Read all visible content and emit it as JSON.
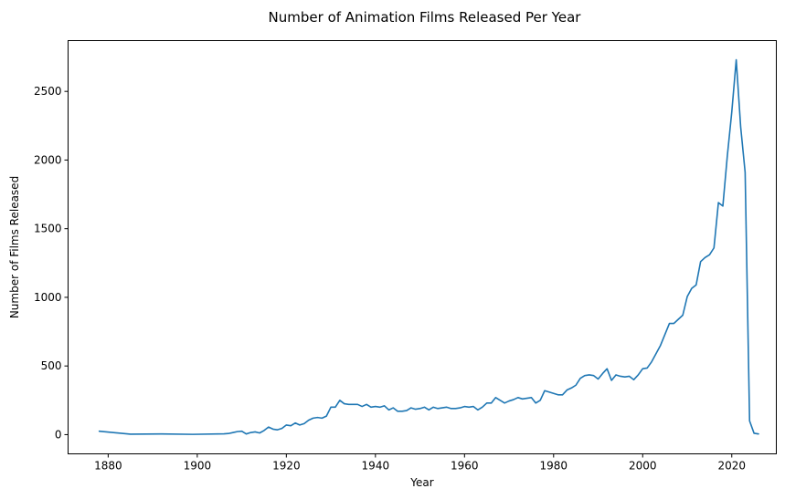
{
  "chart_data": {
    "type": "line",
    "title": "Number of Animation Films Released Per Year",
    "xlabel": "Year",
    "ylabel": "Number of Films Released",
    "xlim": [
      1871,
      2030
    ],
    "ylim": [
      -140,
      2870
    ],
    "xticks": [
      1880,
      1900,
      1920,
      1940,
      1960,
      1980,
      2000,
      2020
    ],
    "yticks": [
      0,
      500,
      1000,
      1500,
      2000,
      2500
    ],
    "grid": false,
    "series": [
      {
        "color": "#1f77b4",
        "x": [
          1878,
          1885,
          1892,
          1899,
          1906,
          1907,
          1908,
          1909,
          1910,
          1911,
          1912,
          1913,
          1914,
          1915,
          1916,
          1917,
          1918,
          1919,
          1920,
          1921,
          1922,
          1923,
          1924,
          1925,
          1926,
          1927,
          1928,
          1929,
          1930,
          1931,
          1932,
          1933,
          1934,
          1935,
          1936,
          1937,
          1938,
          1939,
          1940,
          1941,
          1942,
          1943,
          1944,
          1945,
          1946,
          1947,
          1948,
          1949,
          1950,
          1951,
          1952,
          1953,
          1954,
          1955,
          1956,
          1957,
          1958,
          1959,
          1960,
          1961,
          1962,
          1963,
          1964,
          1965,
          1966,
          1967,
          1968,
          1969,
          1970,
          1971,
          1972,
          1973,
          1974,
          1975,
          1976,
          1977,
          1978,
          1979,
          1980,
          1981,
          1982,
          1983,
          1984,
          1985,
          1986,
          1987,
          1988,
          1989,
          1990,
          1991,
          1992,
          1993,
          1994,
          1995,
          1996,
          1997,
          1998,
          1999,
          2000,
          2001,
          2002,
          2003,
          2004,
          2005,
          2006,
          2007,
          2008,
          2009,
          2010,
          2011,
          2012,
          2013,
          2014,
          2015,
          2016,
          2017,
          2018,
          2019,
          2020,
          2021,
          2022,
          2023,
          2024,
          2025,
          2026
        ],
        "y": [
          25,
          3,
          5,
          2,
          6,
          8,
          15,
          22,
          25,
          5,
          15,
          20,
          12,
          30,
          55,
          40,
          35,
          45,
          70,
          65,
          85,
          70,
          80,
          105,
          120,
          125,
          120,
          135,
          200,
          200,
          250,
          225,
          220,
          220,
          220,
          205,
          220,
          200,
          205,
          200,
          210,
          180,
          195,
          170,
          170,
          175,
          195,
          185,
          190,
          200,
          180,
          200,
          190,
          195,
          200,
          190,
          190,
          195,
          205,
          200,
          205,
          180,
          200,
          230,
          230,
          270,
          250,
          230,
          245,
          255,
          270,
          260,
          265,
          270,
          230,
          250,
          320,
          310,
          300,
          290,
          290,
          325,
          340,
          360,
          410,
          430,
          435,
          430,
          405,
          445,
          480,
          395,
          435,
          425,
          420,
          425,
          400,
          435,
          480,
          485,
          530,
          590,
          650,
          730,
          810,
          810,
          840,
          870,
          1005,
          1065,
          1090,
          1260,
          1290,
          1310,
          1360,
          1690,
          1665,
          2030,
          2350,
          2730,
          2240,
          1910,
          100,
          10,
          5
        ]
      }
    ]
  }
}
